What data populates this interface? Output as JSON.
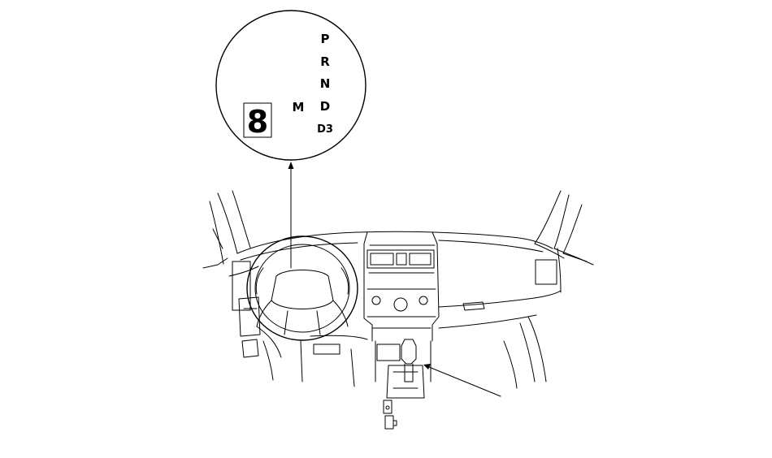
{
  "gear_indicator": {
    "gears": [
      "P",
      "R",
      "N",
      "D",
      "D3"
    ],
    "mode_label": "M",
    "digit_display": "8"
  }
}
